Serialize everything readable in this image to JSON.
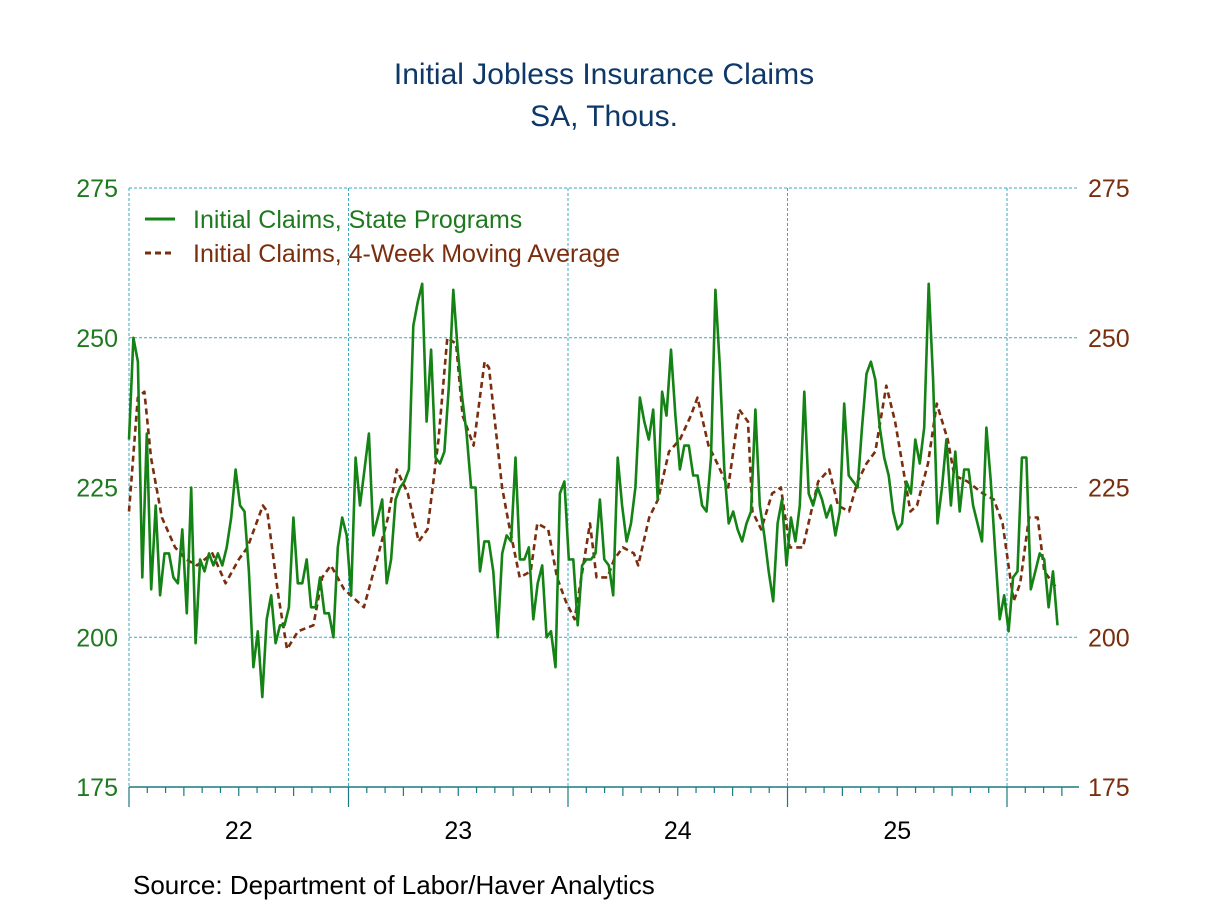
{
  "chart_data": {
    "type": "line",
    "title": "Initial Jobless Insurance Claims",
    "subtitle": "SA, Thous.",
    "source": "Source:  Department of Labor/Haver Analytics",
    "xlabel": "",
    "ylabel": "",
    "x_ticks": [
      "22",
      "23",
      "24",
      "25"
    ],
    "x_range": [
      22,
      26.33
    ],
    "y_ticks": [
      "175",
      "200",
      "225",
      "250",
      "275"
    ],
    "ylim": [
      175,
      275
    ],
    "grid": true,
    "legend_position": "top-left",
    "colors": {
      "claims": "#148214",
      "moving_average": "#7a2e0e",
      "grid": "#3aaac4",
      "axis": "#1a7a80",
      "title": "#0d3868"
    },
    "series": [
      {
        "name": "Initial Claims, State Programs",
        "style": "solid",
        "frequency": "weekly",
        "x_first": 22.0,
        "x_last": 26.23,
        "values": [
          233,
          250,
          246,
          210,
          234,
          208,
          222,
          207,
          214,
          214,
          210,
          209,
          218,
          204,
          225,
          199,
          213,
          211,
          214,
          212,
          214,
          212,
          215,
          220,
          228,
          222,
          221,
          211,
          195,
          201,
          190,
          203,
          207,
          199,
          202,
          202,
          205,
          220,
          209,
          209,
          213,
          205,
          205,
          210,
          204,
          204,
          200,
          215,
          220,
          217,
          207,
          230,
          222,
          228,
          234,
          217,
          220,
          223,
          209,
          213,
          223,
          225,
          226,
          228,
          252,
          256,
          259,
          236,
          248,
          230,
          229,
          231,
          242,
          258,
          248,
          240,
          234,
          225,
          225,
          211,
          216,
          216,
          211,
          200,
          214,
          217,
          216,
          230,
          213,
          213,
          215,
          203,
          209,
          212,
          200,
          201,
          195,
          224,
          226,
          213,
          213,
          202,
          212,
          213,
          213,
          214,
          223,
          213,
          212,
          207,
          230,
          222,
          216,
          219,
          225,
          240,
          236,
          233,
          238,
          223,
          241,
          237,
          248,
          237,
          228,
          232,
          232,
          227,
          227,
          222,
          221,
          230,
          258,
          245,
          228,
          219,
          221,
          218,
          216,
          219,
          221,
          238,
          222,
          217,
          211,
          206,
          219,
          223,
          212,
          220,
          216,
          222,
          241,
          224,
          222,
          225,
          223,
          220,
          222,
          217,
          221,
          239,
          227,
          226,
          225,
          235,
          244,
          246,
          243,
          235,
          230,
          227,
          221,
          218,
          219,
          226,
          224,
          233,
          229,
          235,
          259,
          243,
          219,
          225,
          233,
          222,
          231,
          221,
          228,
          228,
          222,
          219,
          216,
          235,
          226,
          214,
          203,
          207,
          201,
          210,
          211,
          230,
          230,
          208,
          211,
          214,
          213,
          205,
          211,
          202
        ]
      },
      {
        "name": "Initial Claims, 4-Week Moving Average",
        "style": "dashed",
        "points": [
          [
            22.0,
            221
          ],
          [
            22.04,
            240
          ],
          [
            22.07,
            241
          ],
          [
            22.1,
            230
          ],
          [
            22.15,
            220
          ],
          [
            22.21,
            215
          ],
          [
            22.26,
            213
          ],
          [
            22.31,
            212
          ],
          [
            22.38,
            214
          ],
          [
            22.44,
            209
          ],
          [
            22.5,
            213
          ],
          [
            22.54,
            215
          ],
          [
            22.61,
            222
          ],
          [
            22.63,
            221
          ],
          [
            22.68,
            207
          ],
          [
            22.72,
            198
          ],
          [
            22.77,
            201
          ],
          [
            22.84,
            202
          ],
          [
            22.88,
            210
          ],
          [
            22.92,
            212
          ],
          [
            22.98,
            208
          ],
          [
            23.04,
            206
          ],
          [
            23.07,
            205
          ],
          [
            23.13,
            213
          ],
          [
            23.18,
            220
          ],
          [
            23.22,
            228
          ],
          [
            23.27,
            224
          ],
          [
            23.32,
            216
          ],
          [
            23.36,
            218
          ],
          [
            23.41,
            233
          ],
          [
            23.45,
            250
          ],
          [
            23.49,
            249
          ],
          [
            23.52,
            237
          ],
          [
            23.57,
            232
          ],
          [
            23.62,
            246
          ],
          [
            23.64,
            245
          ],
          [
            23.7,
            225
          ],
          [
            23.73,
            219
          ],
          [
            23.78,
            210
          ],
          [
            23.83,
            211
          ],
          [
            23.86,
            219
          ],
          [
            23.91,
            218
          ],
          [
            23.95,
            210
          ],
          [
            23.99,
            206
          ],
          [
            24.03,
            203
          ],
          [
            24.1,
            219
          ],
          [
            24.13,
            210
          ],
          [
            24.18,
            210
          ],
          [
            24.21,
            213
          ],
          [
            24.25,
            215
          ],
          [
            24.3,
            214
          ],
          [
            24.32,
            212
          ],
          [
            24.37,
            220
          ],
          [
            24.41,
            223
          ],
          [
            24.46,
            231
          ],
          [
            24.51,
            233
          ],
          [
            24.56,
            237
          ],
          [
            24.59,
            240
          ],
          [
            24.64,
            232
          ],
          [
            24.68,
            229
          ],
          [
            24.73,
            225
          ],
          [
            24.78,
            238
          ],
          [
            24.82,
            236
          ],
          [
            24.84,
            221
          ],
          [
            24.88,
            218
          ],
          [
            24.93,
            224
          ],
          [
            24.97,
            225
          ],
          [
            25.01,
            215
          ],
          [
            25.07,
            215
          ],
          [
            25.14,
            226
          ],
          [
            25.19,
            228
          ],
          [
            25.23,
            222
          ],
          [
            25.28,
            221
          ],
          [
            25.32,
            226
          ],
          [
            25.36,
            229
          ],
          [
            25.4,
            231
          ],
          [
            25.45,
            242
          ],
          [
            25.49,
            236
          ],
          [
            25.56,
            221
          ],
          [
            25.59,
            222
          ],
          [
            25.64,
            229
          ],
          [
            25.68,
            239
          ],
          [
            25.73,
            233
          ],
          [
            25.76,
            227
          ],
          [
            25.82,
            226
          ],
          [
            25.89,
            224
          ],
          [
            25.94,
            223
          ],
          [
            25.98,
            219
          ],
          [
            26.03,
            206
          ],
          [
            26.06,
            209
          ],
          [
            26.1,
            220
          ],
          [
            26.14,
            220
          ],
          [
            26.17,
            211
          ],
          [
            26.23,
            208
          ]
        ]
      }
    ]
  }
}
